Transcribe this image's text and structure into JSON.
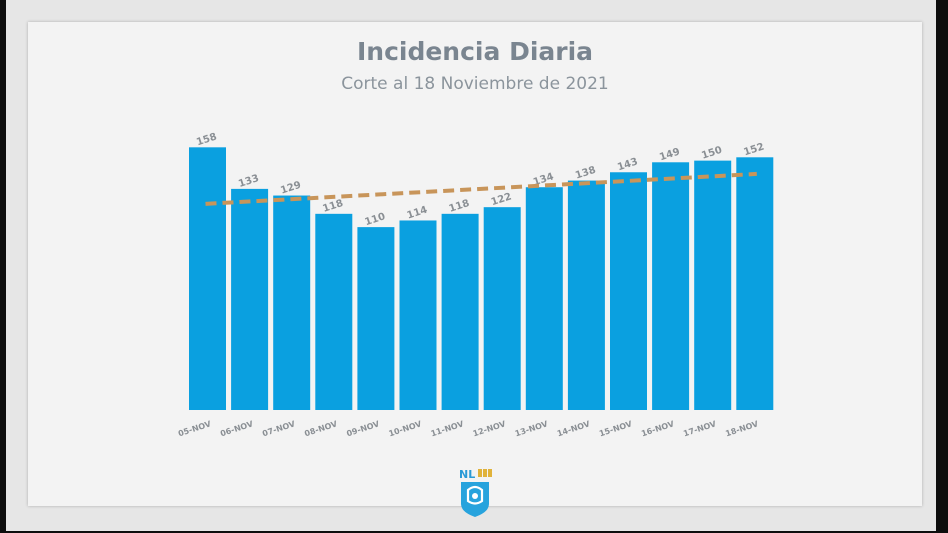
{
  "chart_data": {
    "type": "bar",
    "title": "Incidencia Diaria",
    "subtitle": "Corte al 18 Noviembre de 2021",
    "categories": [
      "05-NOV",
      "06-NOV",
      "07-NOV",
      "08-NOV",
      "09-NOV",
      "10-NOV",
      "11-NOV",
      "12-NOV",
      "13-NOV",
      "14-NOV",
      "15-NOV",
      "16-NOV",
      "17-NOV",
      "18-NOV"
    ],
    "values": [
      158,
      133,
      129,
      118,
      110,
      114,
      118,
      122,
      134,
      138,
      143,
      149,
      150,
      152
    ],
    "ylim": [
      0,
      160
    ],
    "trendline": {
      "style": "dashed",
      "start": 124,
      "end": 142
    },
    "grid": false,
    "legend": "none",
    "colors": {
      "bar": "#0aa0e0",
      "trend": "#c8955a",
      "label": "#8a8f94"
    }
  },
  "logo": {
    "text": "NL"
  }
}
